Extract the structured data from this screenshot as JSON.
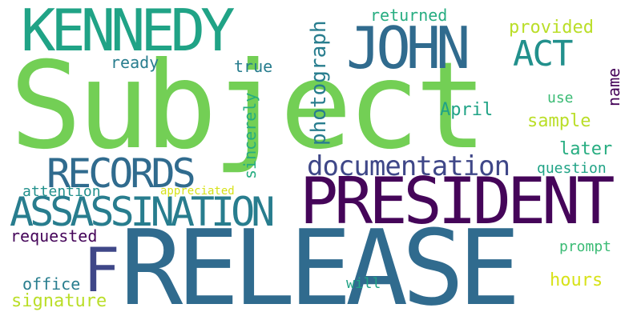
{
  "palette": {
    "background": "#ffffff",
    "light_green": "#73cf55",
    "green": "#3bbb75",
    "teal_green": "#27ad81",
    "teal": "#20a386",
    "teal_blue": "#22908c",
    "blue_teal": "#287d8e",
    "blue": "#306b8e",
    "slate": "#3f4788",
    "dark_purple": "#450559",
    "yellow_green": "#bade28",
    "lime": "#d7e219"
  },
  "words": {
    "w_subject": "Subject",
    "w_release": "RELEASE",
    "w_president": "PRESIDENT",
    "w_kennedy": "KENNEDY",
    "w_john": "JOHN",
    "w_records": "RECORDS",
    "w_assassination": "ASSASSINATION",
    "w_act": "ACT",
    "w_f": "F",
    "w_documentation": "documentation",
    "w_photograph": "photograph",
    "w_sincerely": "sincerely",
    "w_returned": "returned",
    "w_provided": "provided",
    "w_ready": "ready",
    "w_true": "true",
    "w_name": "name",
    "w_april": "April",
    "w_use": "use",
    "w_sample": "sample",
    "w_later": "later",
    "w_question": "question",
    "w_attention": "attention",
    "w_appreciated": "appreciated",
    "w_requested": "requested",
    "w_prompt": "prompt",
    "w_office": "office",
    "w_will": "will",
    "w_hours": "hours",
    "w_signature": "signature"
  }
}
